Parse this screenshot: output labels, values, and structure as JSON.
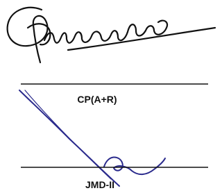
{
  "signatures": [
    {
      "label": "CP(A+R)"
    },
    {
      "label": "JMD-II"
    }
  ]
}
